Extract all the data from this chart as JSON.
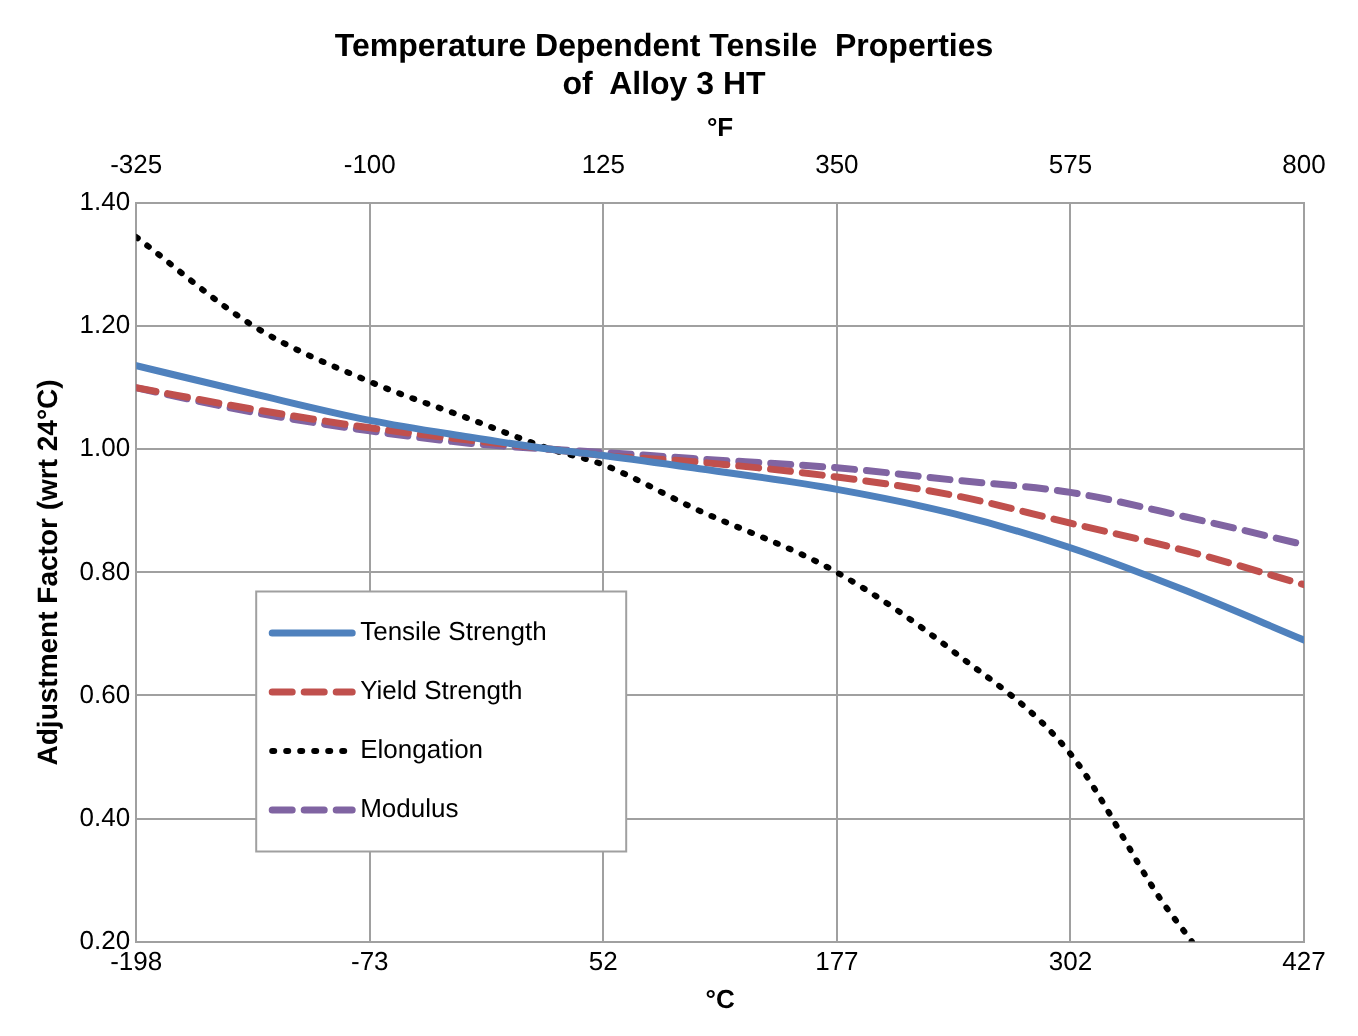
{
  "chart_data": {
    "type": "line",
    "title": "Temperature Dependent Tensile  Properties\nof  Alloy 3 HT",
    "xlabel": "°C",
    "x2label": "°F",
    "ylabel": "Adjustment Factor (wrt 24°C)",
    "xlim": [
      -198,
      427
    ],
    "xticks": [
      -198,
      -73,
      52,
      177,
      302,
      427
    ],
    "x2lim": [
      -325,
      800
    ],
    "x2ticks": [
      -325,
      -100,
      125,
      350,
      575,
      800
    ],
    "ylim": [
      0.2,
      1.4
    ],
    "yticks": [
      {
        "value": 0.2,
        "label": "0.20"
      },
      {
        "value": 0.4,
        "label": "0.40"
      },
      {
        "value": 0.6,
        "label": "0.60"
      },
      {
        "value": 0.8,
        "label": "0.80"
      },
      {
        "value": 1.0,
        "label": "1.00"
      },
      {
        "value": 1.2,
        "label": "1.20"
      },
      {
        "value": 1.4,
        "label": "1.40"
      }
    ],
    "grid": true,
    "legend": "bottom left",
    "marker": "none",
    "series": [
      {
        "name": "Tensile Strength",
        "color": "#4f81bd",
        "line_style": "solid",
        "x": [
          -198,
          -135,
          -73,
          -20,
          24,
          52,
          100,
          177,
          240,
          302,
          364,
          427
        ],
        "values": [
          1.136,
          1.09,
          1.047,
          1.02,
          1.0,
          0.99,
          0.97,
          0.935,
          0.895,
          0.84,
          0.77,
          0.69
        ]
      },
      {
        "name": "Yield Strength",
        "color": "#c0504d",
        "line_style": "dashed",
        "x": [
          -198,
          -135,
          -73,
          -20,
          24,
          52,
          100,
          177,
          240,
          302,
          364,
          427
        ],
        "values": [
          1.1,
          1.065,
          1.035,
          1.015,
          1.0,
          0.99,
          0.98,
          0.955,
          0.925,
          0.88,
          0.835,
          0.78
        ]
      },
      {
        "name": "Elongation",
        "color": "#000000",
        "line_style": "dotted",
        "x": [
          -198,
          -135,
          -73,
          -20,
          24,
          52,
          100,
          177,
          240,
          302,
          350,
          367
        ],
        "values": [
          1.345,
          1.2,
          1.11,
          1.05,
          1.0,
          0.975,
          0.905,
          0.8,
          0.67,
          0.505,
          0.27,
          0.2
        ]
      },
      {
        "name": "Modulus",
        "color": "#8064a2",
        "line_style": "dashed",
        "x": [
          -198,
          -135,
          -73,
          -20,
          24,
          52,
          100,
          177,
          240,
          302,
          364,
          427
        ],
        "values": [
          1.1,
          1.06,
          1.03,
          1.01,
          1.0,
          0.995,
          0.985,
          0.97,
          0.95,
          0.93,
          0.89,
          0.845
        ]
      }
    ]
  }
}
